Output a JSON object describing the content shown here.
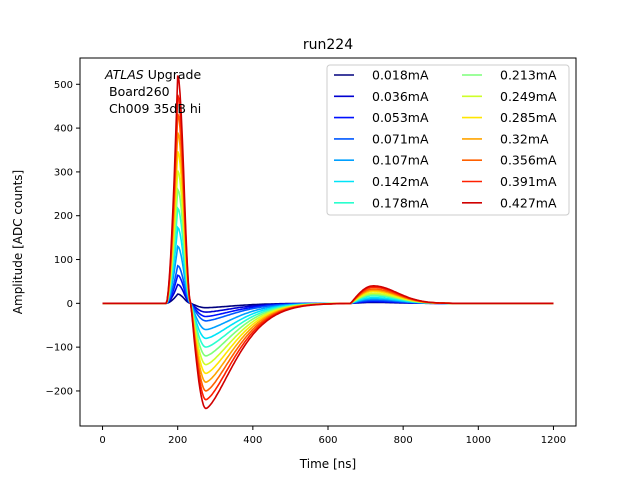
{
  "chart_data": {
    "type": "line",
    "title": "run224",
    "xlabel": "Time [ns]",
    "ylabel": "Amplitude [ADC counts]",
    "xlim": [
      -60,
      1260
    ],
    "ylim": [
      -280,
      560
    ],
    "xticks": [
      0,
      200,
      400,
      600,
      800,
      1000,
      1200
    ],
    "yticks": [
      -200,
      -100,
      0,
      100,
      200,
      300,
      400,
      500
    ],
    "grid": false,
    "legend_placement": "top-right",
    "legend_columns": 2,
    "annotation": {
      "italic": "ATLAS",
      "line1": " Upgrade",
      "line2": "Board260",
      "line3": "Ch009 35dB hi"
    },
    "pulse_timing_ns": {
      "start": 170,
      "peak": 200,
      "zero_cross": 235,
      "undershoot_min": 275,
      "second_bump_start": 660,
      "second_bump_peak": 720,
      "end": 1200
    },
    "series": [
      {
        "name": "0.018mA",
        "color": "#00007f",
        "peak": 21,
        "undershoot": -10,
        "bump": 2
      },
      {
        "name": "0.036mA",
        "color": "#0000d0",
        "peak": 43,
        "undershoot": -20,
        "bump": 3
      },
      {
        "name": "0.053mA",
        "color": "#0010ff",
        "peak": 64,
        "undershoot": -30,
        "bump": 5
      },
      {
        "name": "0.071mA",
        "color": "#0058ff",
        "peak": 86,
        "undershoot": -40,
        "bump": 7
      },
      {
        "name": "0.107mA",
        "color": "#00a0ff",
        "peak": 130,
        "undershoot": -60,
        "bump": 10
      },
      {
        "name": "0.142mA",
        "color": "#00e4f8",
        "peak": 173,
        "undershoot": -80,
        "bump": 13
      },
      {
        "name": "0.178mA",
        "color": "#29ffce",
        "peak": 217,
        "undershoot": -100,
        "bump": 17
      },
      {
        "name": "0.213mA",
        "color": "#7dff7a",
        "peak": 260,
        "undershoot": -120,
        "bump": 20
      },
      {
        "name": "0.249mA",
        "color": "#ceff29",
        "peak": 303,
        "undershoot": -140,
        "bump": 23
      },
      {
        "name": "0.285mA",
        "color": "#ffe600",
        "peak": 347,
        "undershoot": -160,
        "bump": 27
      },
      {
        "name": "0.32mA",
        "color": "#ffa400",
        "peak": 390,
        "undershoot": -180,
        "bump": 30
      },
      {
        "name": "0.356mA",
        "color": "#ff6000",
        "peak": 433,
        "undershoot": -200,
        "bump": 33
      },
      {
        "name": "0.391mA",
        "color": "#ff2000",
        "peak": 476,
        "undershoot": -220,
        "bump": 37
      },
      {
        "name": "0.427mA",
        "color": "#d00000",
        "peak": 520,
        "undershoot": -240,
        "bump": 40
      }
    ]
  }
}
